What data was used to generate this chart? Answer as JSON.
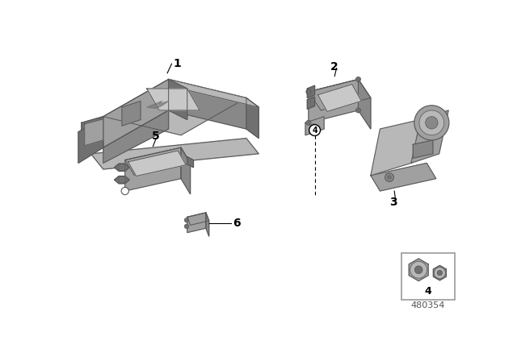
{
  "background_color": "#f5f5f5",
  "part_color_top": "#b8b8b8",
  "part_color_front": "#a0a0a0",
  "part_color_side": "#888888",
  "part_color_dark": "#707070",
  "part_color_light": "#d0d0d0",
  "part_color_highlight": "#c8c8c8",
  "outline_color": "#555555",
  "diagram_id": "480354",
  "label_size": 10,
  "label_bold": true
}
